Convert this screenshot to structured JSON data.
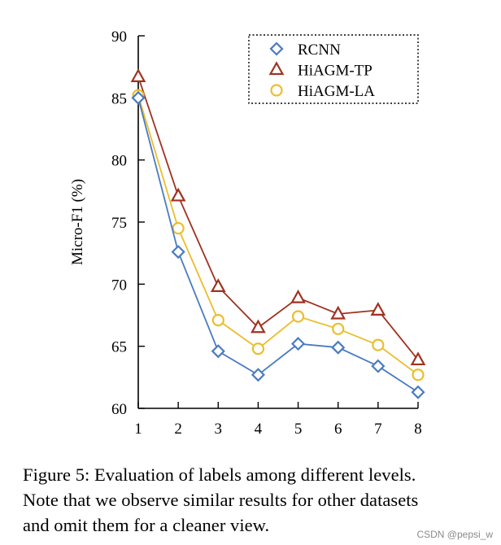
{
  "chart_data": {
    "type": "line",
    "title": "",
    "xlabel": "",
    "ylabel": "Micro-F1 (%)",
    "categories": [
      "1",
      "2",
      "3",
      "4",
      "5",
      "6",
      "7",
      "8"
    ],
    "xlim": [
      1,
      8
    ],
    "ylim": [
      60,
      90
    ],
    "yticks": [
      60,
      65,
      70,
      75,
      80,
      85,
      90
    ],
    "grid": false,
    "legend_position": "top-right",
    "series": [
      {
        "name": "RCNN",
        "marker": "diamond",
        "color": "#4a7bc0",
        "values": [
          85.0,
          72.6,
          64.6,
          62.7,
          65.2,
          64.9,
          63.4,
          61.3
        ]
      },
      {
        "name": "HiAGM-TP",
        "marker": "triangle",
        "color": "#a03221",
        "values": [
          86.7,
          77.1,
          69.8,
          66.5,
          68.9,
          67.6,
          67.9,
          63.9
        ]
      },
      {
        "name": "HiAGM-LA",
        "marker": "circle",
        "color": "#ebbe2d",
        "values": [
          85.2,
          74.5,
          67.1,
          64.8,
          67.4,
          66.4,
          65.1,
          62.7
        ]
      }
    ]
  },
  "caption": {
    "line1": "Figure 5: Evaluation of labels among different levels.",
    "line2": "Note that we observe similar results for other datasets",
    "line3": "and omit them for a cleaner view."
  },
  "watermark": "CSDN @pepsi_w"
}
